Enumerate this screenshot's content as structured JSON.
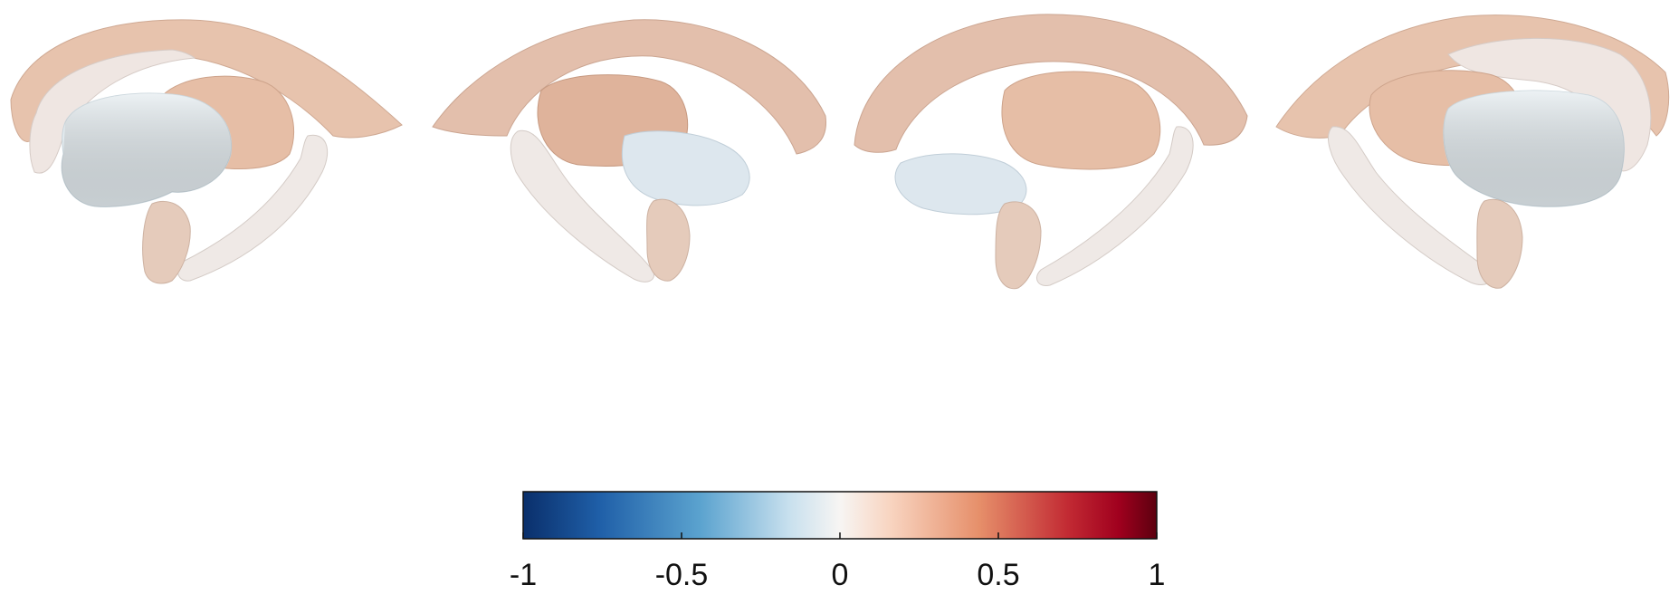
{
  "figure": {
    "views": [
      {
        "name": "left-lateral"
      },
      {
        "name": "left-medial"
      },
      {
        "name": "right-medial"
      },
      {
        "name": "right-lateral"
      }
    ]
  },
  "colorbar": {
    "min": -1,
    "max": 1,
    "ticks": [
      {
        "value": -1,
        "label": "-1"
      },
      {
        "value": -0.5,
        "label": "-0.5"
      },
      {
        "value": 0,
        "label": "0"
      },
      {
        "value": 0.5,
        "label": "0.5"
      },
      {
        "value": 1,
        "label": "1"
      }
    ],
    "colors": {
      "neg_extreme": "#0a2f6b",
      "neg_mid": "#3a8cc4",
      "neutral": "#f7f5f3",
      "pos_mid": "#e8946c",
      "pos_extreme": "#6b0011"
    }
  },
  "structure_colors": {
    "caudate": "#e7c3ad",
    "putamen": "#e3ebef",
    "putamen_medial": "#dfb39b",
    "hippocampus": "#efe9e6",
    "amygdala": "#e5cbbb",
    "thalamus": "#dde7ee"
  }
}
